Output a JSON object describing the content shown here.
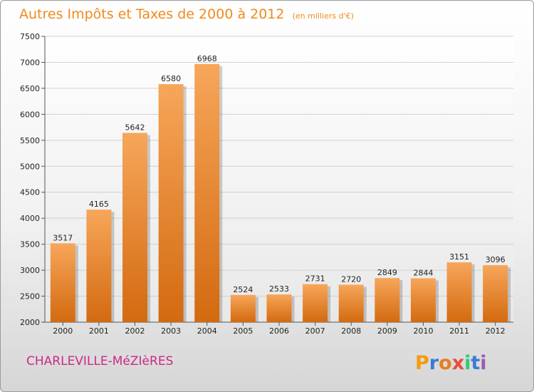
{
  "header": {
    "title": "Autres Impôts et Taxes de 2000 à 2012",
    "subtitle": "(en milliers d'€)"
  },
  "footer": {
    "commune": "CHARLEVILLE-MéZIèRES",
    "logo_text": "Proxiti"
  },
  "colors": {
    "title": "#f08a1c",
    "commune": "#cc2a86",
    "bar_top": "#f7a65a",
    "bar_bottom": "#d36a10",
    "grid": "#d0d0d0"
  },
  "chart_data": {
    "type": "bar",
    "title": "Autres Impôts et Taxes de 2000 à 2012",
    "subtitle": "(en milliers d'€)",
    "xlabel": "",
    "ylabel": "",
    "categories": [
      "2000",
      "2001",
      "2002",
      "2003",
      "2004",
      "2005",
      "2006",
      "2007",
      "2008",
      "2009",
      "2010",
      "2011",
      "2012"
    ],
    "values": [
      3517,
      4165,
      5642,
      6580,
      6968,
      2524,
      2533,
      2731,
      2720,
      2849,
      2844,
      3151,
      3096
    ],
    "ylim": [
      2000,
      7500
    ],
    "yticks": [
      2000,
      2500,
      3000,
      3500,
      4000,
      4500,
      5000,
      5500,
      6000,
      6500,
      7000,
      7500
    ],
    "grid": true,
    "data_labels": true
  }
}
